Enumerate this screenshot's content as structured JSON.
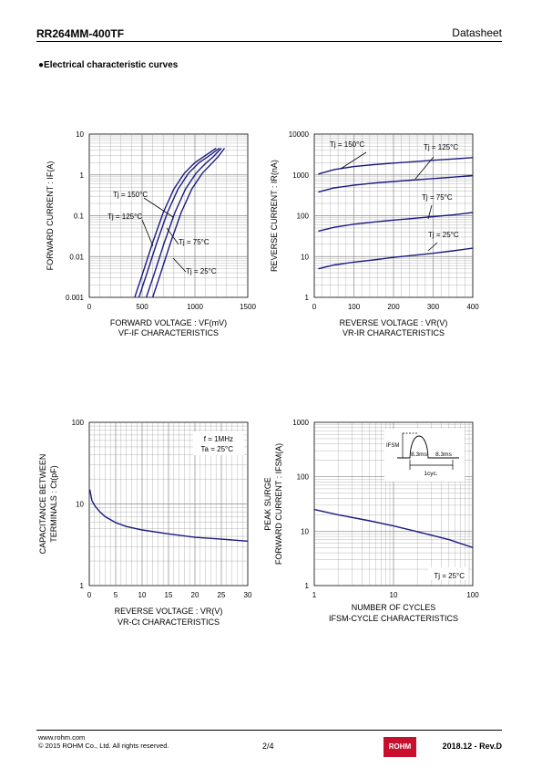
{
  "header": {
    "part_number": "RR264MM-400TF",
    "doc_type": "Datasheet"
  },
  "section_title": "●Electrical characteristic curves",
  "footer": {
    "url": "www.rohm.com",
    "copyright": "© 2015 ROHM Co., Ltd. All rights reserved.",
    "page": "2/4",
    "logo": "ROHM",
    "revision": "2018.12 - Rev.D"
  },
  "colors": {
    "curve": "#1a1a80",
    "grid": "#888888"
  },
  "chart_data": [
    {
      "type": "line",
      "title": "VF-IF CHARACTERISTICS",
      "xlabel": "FORWARD VOLTAGE : VF(mV)",
      "ylabel": "FORWARD CURRENT : IF(A)",
      "x_scale": "linear",
      "y_scale": "log",
      "xlim": [
        0,
        1500
      ],
      "ylim": [
        0.001,
        10
      ],
      "x_ticks": [
        "0",
        "500",
        "1000",
        "1500"
      ],
      "y_ticks": [
        "0.001",
        "0.01",
        "0.1",
        "1",
        "10"
      ],
      "series": [
        {
          "name": "Tj = 150°C",
          "x": [
            430,
            500,
            600,
            700,
            800,
            900,
            1000,
            1100,
            1200
          ],
          "y": [
            0.001,
            0.0035,
            0.022,
            0.12,
            0.45,
            1.1,
            2.0,
            3.0,
            4.5
          ]
        },
        {
          "name": "Tj = 125°C",
          "x": [
            470,
            540,
            640,
            740,
            840,
            940,
            1040,
            1140,
            1230
          ],
          "y": [
            0.001,
            0.0035,
            0.022,
            0.12,
            0.45,
            1.1,
            2.0,
            3.0,
            4.5
          ]
        },
        {
          "name": "Tj = 75°C",
          "x": [
            540,
            610,
            710,
            810,
            910,
            1010,
            1100,
            1180,
            1250
          ],
          "y": [
            0.001,
            0.0035,
            0.022,
            0.12,
            0.45,
            1.1,
            1.9,
            2.9,
            4.5
          ]
        },
        {
          "name": "Tj = 25°C",
          "x": [
            600,
            670,
            770,
            870,
            970,
            1070,
            1150,
            1220,
            1280
          ],
          "y": [
            0.001,
            0.0035,
            0.022,
            0.12,
            0.45,
            1.1,
            1.8,
            2.8,
            4.5
          ]
        }
      ]
    },
    {
      "type": "line",
      "title": "VR-IR CHARACTERISTICS",
      "xlabel": "REVERSE VOLTAGE : VR(V)",
      "ylabel": "REVERSE CURRENT : IR(nA)",
      "x_scale": "linear",
      "y_scale": "log",
      "xlim": [
        0,
        400
      ],
      "ylim": [
        1,
        10000
      ],
      "x_ticks": [
        "0",
        "100",
        "200",
        "300",
        "400"
      ],
      "y_ticks": [
        "1",
        "10",
        "100",
        "1000",
        "10000"
      ],
      "series": [
        {
          "name": "Tj = 150°C",
          "x": [
            10,
            50,
            100,
            150,
            200,
            250,
            300,
            350,
            400
          ],
          "y": [
            1050,
            1350,
            1600,
            1780,
            1950,
            2100,
            2280,
            2450,
            2650
          ]
        },
        {
          "name": "Tj = 125°C",
          "x": [
            10,
            50,
            100,
            150,
            200,
            250,
            300,
            350,
            400
          ],
          "y": [
            380,
            480,
            560,
            630,
            690,
            750,
            810,
            880,
            960
          ]
        },
        {
          "name": "Tj = 75°C",
          "x": [
            10,
            50,
            100,
            150,
            200,
            250,
            300,
            350,
            400
          ],
          "y": [
            42,
            52,
            62,
            70,
            78,
            86,
            95,
            105,
            120
          ]
        },
        {
          "name": "Tj = 25°C",
          "x": [
            10,
            50,
            100,
            150,
            200,
            250,
            300,
            350,
            400
          ],
          "y": [
            5,
            6.2,
            7.3,
            8.3,
            9.5,
            10.7,
            12,
            13.8,
            16
          ]
        }
      ]
    },
    {
      "type": "line",
      "title": "VR-Ct CHARACTERISTICS",
      "xlabel": "REVERSE VOLTAGE : VR(V)",
      "ylabel": "CAPACITANCE BETWEEN TERMINALS : Ct(pF)",
      "x_scale": "linear",
      "y_scale": "log",
      "xlim": [
        0,
        30
      ],
      "ylim": [
        1,
        100
      ],
      "x_ticks": [
        "0",
        "5",
        "10",
        "15",
        "20",
        "25",
        "30"
      ],
      "y_ticks": [
        "1",
        "10",
        "100"
      ],
      "annotations": [
        "f = 1MHz",
        "Ta = 25°C"
      ],
      "series": [
        {
          "name": "",
          "x": [
            0.1,
            0.5,
            1,
            2,
            3,
            5,
            7,
            10,
            15,
            20,
            25,
            30
          ],
          "y": [
            15,
            11,
            9.6,
            8.0,
            7.0,
            5.9,
            5.3,
            4.8,
            4.3,
            3.9,
            3.7,
            3.5
          ]
        }
      ]
    },
    {
      "type": "line",
      "title": "IFSM-CYCLE CHARACTERISTICS",
      "xlabel": "NUMBER OF CYCLES",
      "ylabel": "PEAK SURGE FORWARD CURRENT : IFSM(A)",
      "x_scale": "log",
      "y_scale": "log",
      "xlim": [
        1,
        100
      ],
      "ylim": [
        1,
        1000
      ],
      "x_ticks": [
        "1",
        "10",
        "100"
      ],
      "y_ticks": [
        "1",
        "10",
        "100",
        "1000"
      ],
      "annotations": [
        "Tj = 25°C"
      ],
      "inset": {
        "label_ifsm": "IFSM",
        "label_t1": "8.3ms",
        "label_t2": "8.3ms",
        "label_cycle": "1cyc."
      },
      "series": [
        {
          "name": "",
          "x": [
            1,
            2,
            5,
            10,
            20,
            50,
            100
          ],
          "y": [
            25,
            20,
            15.5,
            12.5,
            9.8,
            7.0,
            5.0
          ]
        }
      ]
    }
  ]
}
